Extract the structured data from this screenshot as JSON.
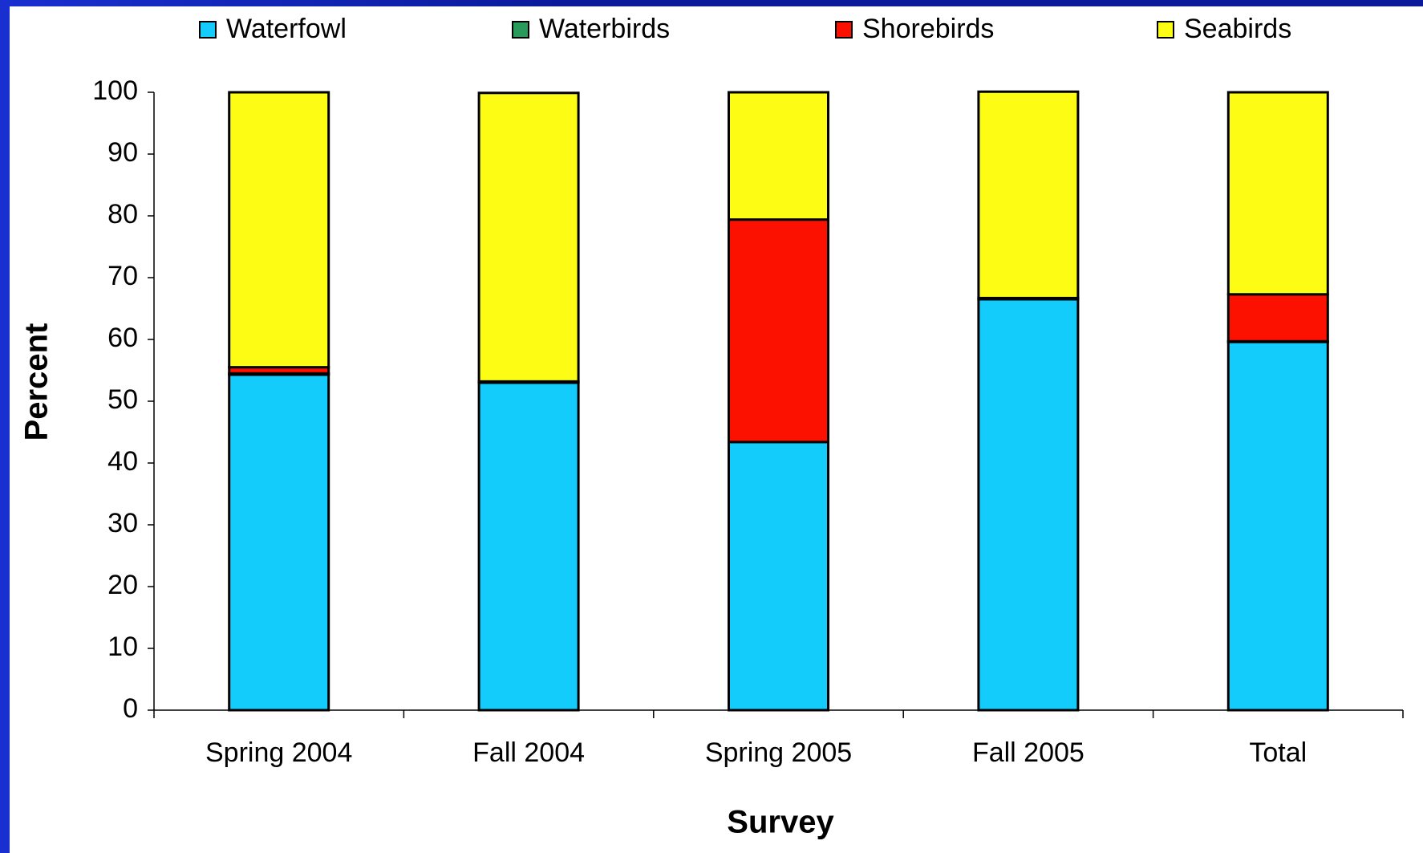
{
  "chart_data": {
    "type": "stacked_bar",
    "categories": [
      "Spring 2004",
      "Fall 2004",
      "Spring 2005",
      "Fall 2005",
      "Total"
    ],
    "series": [
      {
        "name": "Waterfowl",
        "color": "#14ccfc",
        "values": [
          54.3,
          53,
          43.4,
          66.5,
          59.6
        ]
      },
      {
        "name": "Waterbirds",
        "color": "#2a9a5a",
        "values": [
          0.2,
          0,
          0,
          0,
          0.1
        ]
      },
      {
        "name": "Shorebirds",
        "color": "#fc1000",
        "values": [
          1.0,
          0.2,
          36,
          0.2,
          7.6
        ]
      },
      {
        "name": "Seabirds",
        "color": "#fcfc14",
        "values": [
          44.5,
          46.7,
          20.6,
          33.4,
          32.7
        ]
      }
    ],
    "x_label": "Survey",
    "y_label": "Percent",
    "ylim": [
      0,
      100
    ],
    "yticks": [
      0,
      10,
      20,
      30,
      40,
      50,
      60,
      70,
      80,
      90,
      100
    ],
    "grid": false,
    "legend": "top"
  }
}
